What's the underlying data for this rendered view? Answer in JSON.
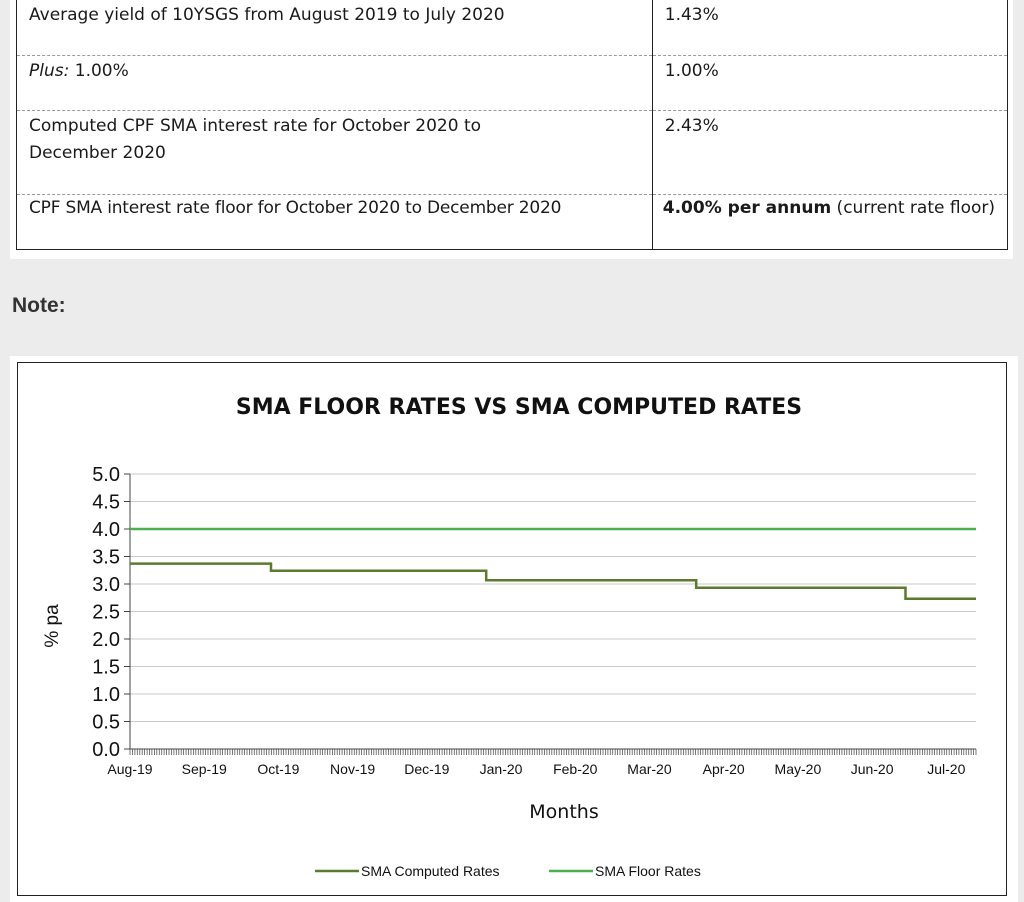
{
  "table": {
    "rows": [
      {
        "label": "Average yield of 10YSGS from August 2019 to July 2020",
        "value": "1.43%"
      },
      {
        "label_prefix": "Plus:",
        "label": " 1.00%",
        "value": "1.00%"
      },
      {
        "label": "Computed CPF SMA interest rate for October 2020 to December 2020",
        "value": "2.43%"
      },
      {
        "label": "CPF SMA interest rate floor for October 2020 to December 2020",
        "value_bold": "4.00% per annum",
        "value": " (current rate floor)"
      }
    ]
  },
  "note": {
    "label": "Note:"
  },
  "chart_data": {
    "type": "line",
    "title": "SMA FLOOR RATES VS SMA COMPUTED RATES",
    "xlabel": "Months",
    "ylabel": "% pa",
    "ylim": [
      0,
      5
    ],
    "yticks": [
      "0.0",
      "0.5",
      "1.0",
      "1.5",
      "2.0",
      "2.5",
      "3.0",
      "3.5",
      "4.0",
      "4.5",
      "5.0"
    ],
    "categories": [
      "Aug-19",
      "Sep-19",
      "Oct-19",
      "Nov-19",
      "Dec-19",
      "Jan-20",
      "Feb-20",
      "Mar-20",
      "Apr-20",
      "May-20",
      "Jun-20",
      "Jul-20"
    ],
    "grid": true,
    "legend_position": "bottom",
    "series": [
      {
        "name": "SMA Computed Rates",
        "color": "#5a7a2e",
        "step": true,
        "points": [
          {
            "x": 0,
            "y": 3.37
          },
          {
            "x": 1.9,
            "y": 3.37
          },
          {
            "x": 1.9,
            "y": 3.24
          },
          {
            "x": 4.8,
            "y": 3.24
          },
          {
            "x": 4.8,
            "y": 3.07
          },
          {
            "x": 7.63,
            "y": 3.07
          },
          {
            "x": 7.63,
            "y": 2.93
          },
          {
            "x": 10.45,
            "y": 2.93
          },
          {
            "x": 10.45,
            "y": 2.73
          },
          {
            "x": 11.4,
            "y": 2.73
          }
        ]
      },
      {
        "name": "SMA Floor Rates",
        "color": "#4caf50",
        "step": false,
        "points": [
          {
            "x": 0,
            "y": 4.0
          },
          {
            "x": 11.4,
            "y": 4.0
          }
        ]
      }
    ]
  }
}
